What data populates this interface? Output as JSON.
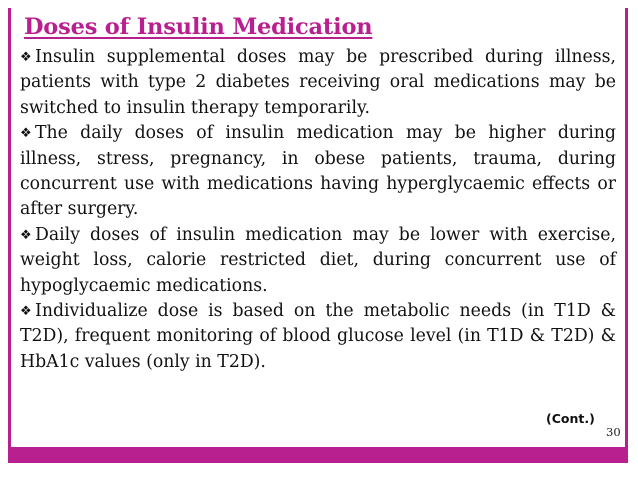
{
  "slide": {
    "title": "Doses of Insulin Medication",
    "bullet_glyph": "❖",
    "bullets": [
      "Insulin supplemental doses may be prescribed during illness, patients with type 2 diabetes receiving oral medications may be switched to insulin therapy temporarily.",
      "The daily doses of insulin medication may be higher during illness, stress, pregnancy, in obese patients, trauma, during concurrent use with medications having hyperglycaemic effects or after surgery.",
      "Daily doses of insulin medication may be lower with exercise, weight loss, calorie restricted diet, during concurrent use of hypoglycaemic medications.",
      "Individualize dose is based on the metabolic needs (in T1D & T2D), frequent monitoring of blood glucose level (in T1D & T2D) & HbA1c values (only in T2D)."
    ],
    "continued_label": "(Cont.)",
    "page_number": "30"
  },
  "colors": {
    "accent": "#b9208f",
    "text": "#111111",
    "background": "#ffffff"
  }
}
